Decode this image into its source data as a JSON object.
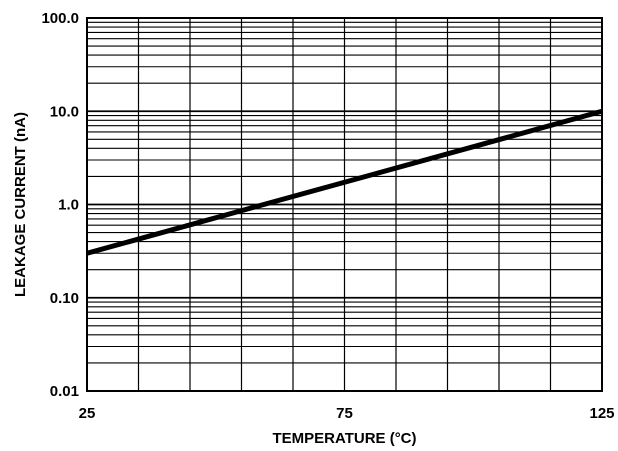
{
  "chart_data": {
    "type": "line",
    "title": "",
    "xlabel": "TEMPERATURE (°C)",
    "ylabel": "LEAKAGE CURRENT (nA)",
    "xlim": [
      25,
      125
    ],
    "ylim": [
      0.01,
      100
    ],
    "y_scale": "log",
    "grid": true,
    "x_ticks": [
      25,
      75,
      125
    ],
    "x_tick_labels": [
      "25",
      "75",
      "125"
    ],
    "x_grid_step": 10,
    "y_ticks": [
      0.01,
      0.1,
      1,
      10,
      100
    ],
    "y_tick_labels": [
      "0.01",
      "0.10",
      "1.0",
      "10.0",
      "100.0"
    ],
    "line_color": "#000000",
    "series": [
      {
        "x": [
          25,
          125
        ],
        "y": [
          0.3,
          10
        ]
      }
    ]
  }
}
